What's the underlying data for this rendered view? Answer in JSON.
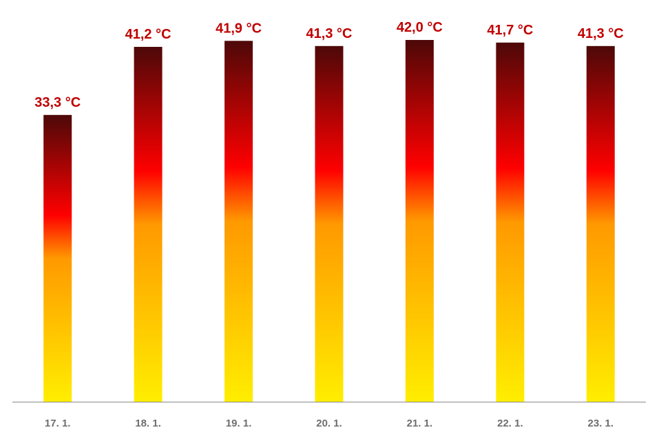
{
  "chart_data": {
    "type": "bar",
    "categories": [
      "17. 1.",
      "18. 1.",
      "19. 1.",
      "20. 1.",
      "21. 1.",
      "22. 1.",
      "23. 1."
    ],
    "values": [
      33.3,
      41.2,
      41.9,
      41.3,
      42.0,
      41.7,
      41.3
    ],
    "data_labels": [
      "33,3 °C",
      "41,2 °C",
      "41,9 °C",
      "41,3 °C",
      "42,0 °C",
      "41,7 °C",
      "41,3 °C"
    ],
    "title": "",
    "xlabel": "",
    "ylabel": "",
    "ylim": [
      0,
      42.0
    ],
    "grid": false,
    "legend": "none",
    "colors": {
      "label": "#c00000",
      "tick": "#6e6e6e",
      "axis": "#888888",
      "gradient_bottom": "#ffee00",
      "gradient_mid_low": "#ff9900",
      "gradient_mid": "#ff0000",
      "gradient_top": "#4d0808"
    }
  }
}
